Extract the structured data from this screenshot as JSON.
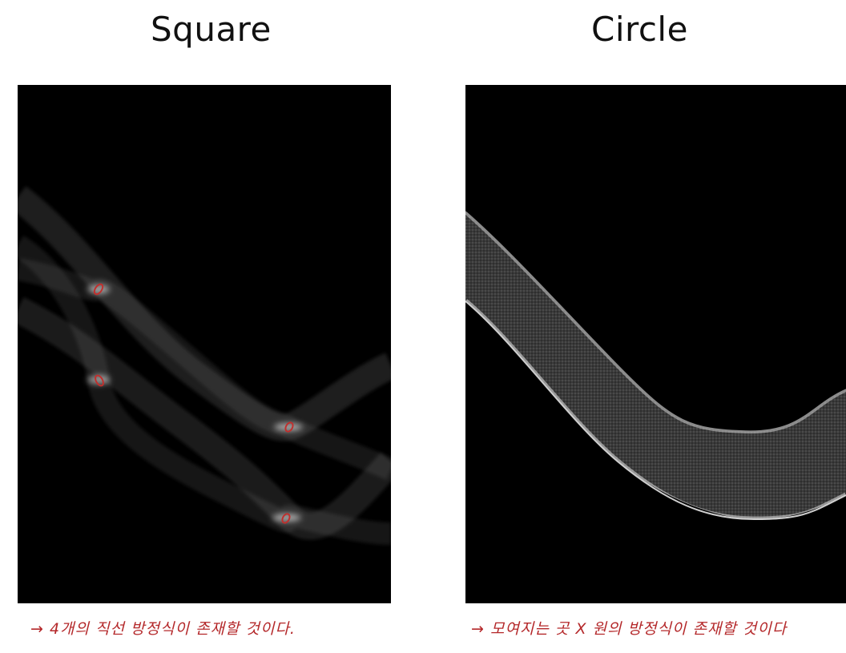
{
  "titles": {
    "square": "Square",
    "circle": "Circle"
  },
  "notes": {
    "square": "→ 4개의 직선 방정식이 존재할 것이다.",
    "circle": "→ 모여지는 곳 X  원의 방정식이 존재할 것이다"
  },
  "colors": {
    "background": "#ffffff",
    "panel": "#000000",
    "annotation": "#b4282a"
  }
}
